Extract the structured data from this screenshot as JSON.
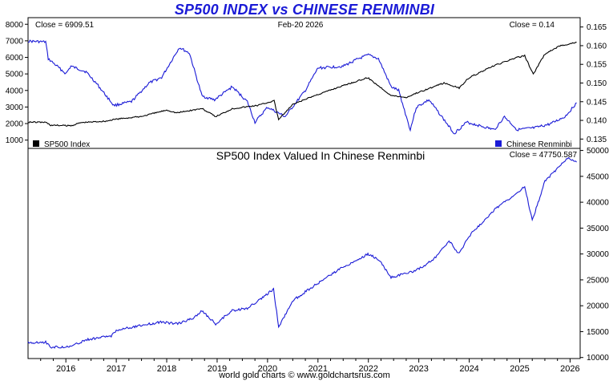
{
  "title": "SP500 INDEX vs CHINESE RENMINBI",
  "footer": "world gold charts © www.goldchartsrus.com",
  "colors": {
    "sp500": "#000000",
    "cny": "#1a1ad6",
    "ratio": "#1a1ad6",
    "title": "#1a1ad6"
  },
  "chart_data": [
    {
      "type": "line",
      "title": "",
      "date_label": "Feb-20  2026",
      "close_left": "Close = 6909.51",
      "close_right": "Close = 0.14",
      "left_axis": {
        "ylim": [
          500,
          8400
        ],
        "ticks": [
          1000,
          2000,
          3000,
          4000,
          5000,
          6000,
          7000,
          8000
        ]
      },
      "right_axis": {
        "ylim": [
          0.1325,
          0.1675
        ],
        "ticks": [
          "0.135",
          "0.140",
          "0.145",
          "0.150",
          "0.155",
          "0.160",
          "0.165"
        ]
      },
      "legend": [
        {
          "name": "SP500 Index",
          "position": "bottom-left"
        },
        {
          "name": "Chinese Renminbi",
          "position": "bottom-right"
        }
      ],
      "series": [
        {
          "name": "SP500 Index",
          "axis": "left",
          "points": [
            [
              2015.25,
              2090
            ],
            [
              2015.6,
              2080
            ],
            [
              2015.7,
              1900
            ],
            [
              2016.1,
              1870
            ],
            [
              2016.3,
              2060
            ],
            [
              2016.8,
              2150
            ],
            [
              2017.0,
              2270
            ],
            [
              2017.5,
              2430
            ],
            [
              2018.0,
              2820
            ],
            [
              2018.2,
              2650
            ],
            [
              2018.7,
              2910
            ],
            [
              2018.97,
              2420
            ],
            [
              2019.3,
              2900
            ],
            [
              2019.8,
              3100
            ],
            [
              2020.13,
              3380
            ],
            [
              2020.22,
              2240
            ],
            [
              2020.5,
              3150
            ],
            [
              2020.9,
              3650
            ],
            [
              2021.5,
              4300
            ],
            [
              2021.99,
              4770
            ],
            [
              2022.45,
              3700
            ],
            [
              2022.75,
              3580
            ],
            [
              2022.95,
              3840
            ],
            [
              2023.5,
              4450
            ],
            [
              2023.8,
              4150
            ],
            [
              2024.0,
              4780
            ],
            [
              2024.5,
              5500
            ],
            [
              2024.9,
              5950
            ],
            [
              2025.1,
              6100
            ],
            [
              2025.27,
              4980
            ],
            [
              2025.5,
              6200
            ],
            [
              2025.8,
              6700
            ],
            [
              2026.13,
              6909.51
            ]
          ]
        },
        {
          "name": "Chinese Renminbi",
          "axis": "right",
          "points": [
            [
              2015.25,
              0.1612
            ],
            [
              2015.6,
              0.161
            ],
            [
              2015.65,
              0.1565
            ],
            [
              2016.0,
              0.1525
            ],
            [
              2016.1,
              0.1545
            ],
            [
              2016.4,
              0.153
            ],
            [
              2016.6,
              0.15
            ],
            [
              2016.95,
              0.144
            ],
            [
              2017.3,
              0.145
            ],
            [
              2017.65,
              0.15
            ],
            [
              2017.9,
              0.1515
            ],
            [
              2018.25,
              0.1595
            ],
            [
              2018.45,
              0.158
            ],
            [
              2018.7,
              0.1465
            ],
            [
              2018.95,
              0.1455
            ],
            [
              2019.3,
              0.149
            ],
            [
              2019.6,
              0.145
            ],
            [
              2019.75,
              0.1395
            ],
            [
              2020.0,
              0.1435
            ],
            [
              2020.35,
              0.141
            ],
            [
              2020.75,
              0.148
            ],
            [
              2021.0,
              0.154
            ],
            [
              2021.5,
              0.1545
            ],
            [
              2021.8,
              0.1565
            ],
            [
              2022.0,
              0.1575
            ],
            [
              2022.2,
              0.1565
            ],
            [
              2022.45,
              0.149
            ],
            [
              2022.6,
              0.148
            ],
            [
              2022.83,
              0.1375
            ],
            [
              2022.95,
              0.1435
            ],
            [
              2023.2,
              0.1455
            ],
            [
              2023.4,
              0.142
            ],
            [
              2023.7,
              0.1365
            ],
            [
              2023.95,
              0.1395
            ],
            [
              2024.5,
              0.1375
            ],
            [
              2024.7,
              0.141
            ],
            [
              2024.95,
              0.1375
            ],
            [
              2025.3,
              0.138
            ],
            [
              2025.6,
              0.139
            ],
            [
              2025.9,
              0.141
            ],
            [
              2026.13,
              0.1447
            ]
          ]
        }
      ]
    },
    {
      "type": "line",
      "title": "SP500 Index Valued In Chinese Renminbi",
      "close_right": "Close = 47750.587",
      "right_axis": {
        "ylim": [
          9800,
          50400
        ],
        "ticks": [
          10000,
          15000,
          20000,
          25000,
          30000,
          35000,
          40000,
          45000,
          50000
        ]
      },
      "series": [
        {
          "name": "SP500 Index Valued In Chinese Renminbi",
          "axis": "right",
          "points": [
            [
              2015.25,
              12900
            ],
            [
              2015.6,
              12950
            ],
            [
              2015.7,
              12000
            ],
            [
              2016.1,
              12100
            ],
            [
              2016.4,
              13400
            ],
            [
              2016.9,
              14200
            ],
            [
              2017.0,
              15300
            ],
            [
              2017.5,
              16200
            ],
            [
              2017.9,
              16900
            ],
            [
              2018.2,
              16500
            ],
            [
              2018.5,
              17500
            ],
            [
              2018.7,
              19000
            ],
            [
              2018.97,
              16500
            ],
            [
              2019.3,
              19100
            ],
            [
              2019.6,
              19500
            ],
            [
              2019.9,
              21500
            ],
            [
              2020.12,
              23200
            ],
            [
              2020.22,
              15900
            ],
            [
              2020.5,
              21000
            ],
            [
              2020.9,
              23700
            ],
            [
              2021.5,
              27500
            ],
            [
              2021.9,
              29500
            ],
            [
              2021.99,
              30000
            ],
            [
              2022.2,
              29000
            ],
            [
              2022.45,
              25500
            ],
            [
              2022.75,
              26300
            ],
            [
              2022.95,
              26800
            ],
            [
              2023.3,
              29000
            ],
            [
              2023.6,
              32500
            ],
            [
              2023.8,
              30000
            ],
            [
              2024.0,
              33500
            ],
            [
              2024.5,
              38500
            ],
            [
              2024.9,
              41500
            ],
            [
              2025.1,
              43000
            ],
            [
              2025.25,
              36500
            ],
            [
              2025.5,
              44000
            ],
            [
              2025.8,
              47000
            ],
            [
              2025.95,
              48500
            ],
            [
              2026.13,
              47750.587
            ]
          ]
        }
      ],
      "x_ticks": [
        "2016",
        "2017",
        "2018",
        "2019",
        "2020",
        "2021",
        "2022",
        "2023",
        "2024",
        "2025",
        "2026"
      ],
      "xlim": [
        2015.25,
        2026.2
      ],
      "grid": false
    }
  ]
}
